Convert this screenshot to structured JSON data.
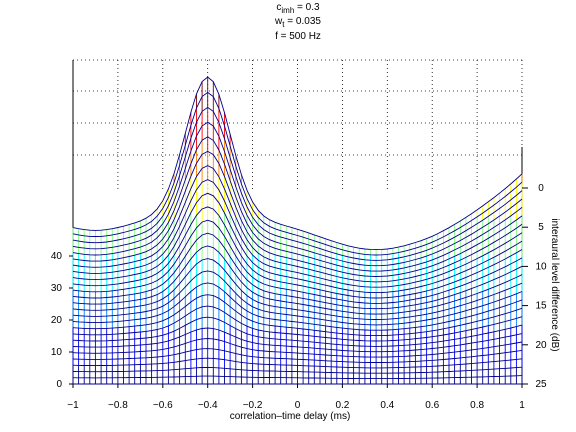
{
  "chart_data": {
    "type": "mesh3d",
    "title_lines": [
      {
        "main": "c",
        "sub": "imh",
        "rest": " = 0.3"
      },
      {
        "main": "w",
        "sub": "t",
        "rest": " = 0.035"
      },
      {
        "main": "f = 500 Hz",
        "sub": "",
        "rest": ""
      }
    ],
    "xlabel": "correlation–time delay (ms)",
    "ylabel": "interaural level difference (dB)",
    "zlabel": "",
    "xlim": [
      -1,
      1
    ],
    "ylim": [
      0,
      25
    ],
    "zlim": [
      0,
      100
    ],
    "x_ticks": [
      -1,
      -0.8,
      -0.6,
      -0.4,
      -0.2,
      0,
      0.2,
      0.4,
      0.6,
      0.8,
      1
    ],
    "x_tick_labels": [
      "−1",
      "−0.8",
      "−0.6",
      "−0.4",
      "−0.2",
      "0",
      "0.2",
      "0.4",
      "0.6",
      "0.8",
      "1"
    ],
    "y_ticks": [
      0,
      5,
      10,
      15,
      20,
      25
    ],
    "y_tick_labels": [
      "0",
      "5",
      "10",
      "15",
      "20",
      "25"
    ],
    "z_ticks": [
      0,
      10,
      20,
      30,
      40
    ],
    "z_tick_labels": [
      "0",
      "10",
      "20",
      "30",
      "40"
    ],
    "grid": true,
    "colormap": [
      "#00008f",
      "#0000ff",
      "#0080ff",
      "#00ffff",
      "#80ff80",
      "#ffff00",
      "#ff8000",
      "#ff0000",
      "#800000"
    ],
    "peak_x": -0.4,
    "series_max_z_at_ild": [
      {
        "ild": 0,
        "peak_z": 92
      },
      {
        "ild": 5,
        "peak_z": 68
      },
      {
        "ild": 10,
        "peak_z": 51
      },
      {
        "ild": 15,
        "peak_z": 38
      },
      {
        "ild": 20,
        "peak_z": 28
      },
      {
        "ild": 25,
        "peak_z": 20
      }
    ],
    "baseline_z_at_ild": [
      {
        "ild": 0,
        "z": 52
      },
      {
        "ild": 25,
        "z": 0
      }
    ]
  }
}
